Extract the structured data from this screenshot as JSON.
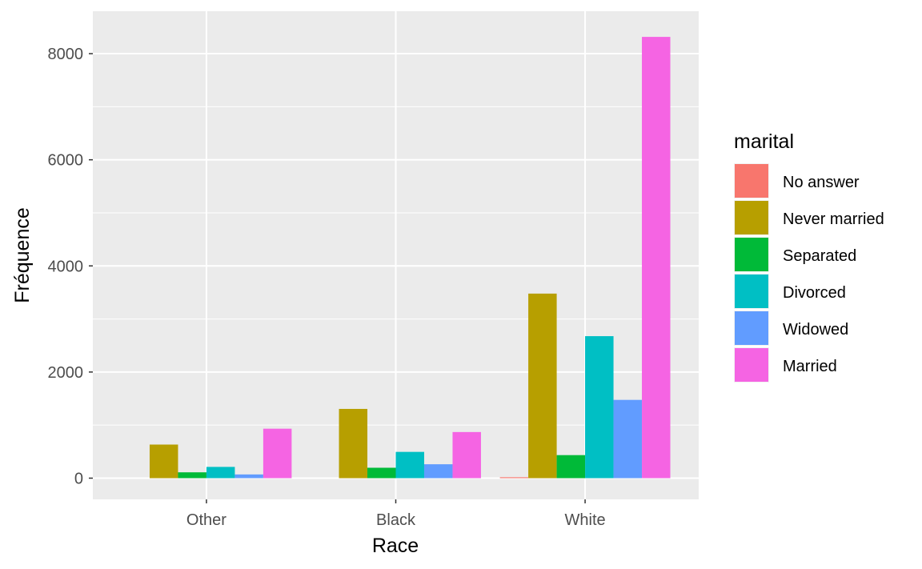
{
  "chart_data": {
    "type": "bar",
    "title": "",
    "xlabel": "Race",
    "ylabel": "Fréquence",
    "categories": [
      "Other",
      "Black",
      "White"
    ],
    "ylim": [
      -400,
      8800
    ],
    "yticks": [
      0,
      2000,
      4000,
      6000,
      8000
    ],
    "ytick_labels": [
      "0",
      "2000",
      "4000",
      "6000",
      "8000"
    ],
    "grid": true,
    "legend": {
      "title": "marital",
      "placement": "right"
    },
    "series": [
      {
        "name": "No answer",
        "color": "#F8766D",
        "values": [
          0,
          0,
          17
        ]
      },
      {
        "name": "Never married",
        "color": "#B79F00",
        "values": [
          633,
          1305,
          3478
        ]
      },
      {
        "name": "Separated",
        "color": "#00BA38",
        "values": [
          110,
          196,
          434
        ]
      },
      {
        "name": "Divorced",
        "color": "#00BFC4",
        "values": [
          212,
          495,
          2676
        ]
      },
      {
        "name": "Widowed",
        "color": "#619CFF",
        "values": [
          70,
          262,
          1475
        ]
      },
      {
        "name": "Married",
        "color": "#F564E3",
        "values": [
          932,
          869,
          8316
        ]
      }
    ]
  },
  "colors": {
    "panel_bg": "#EBEBEB",
    "grid_major": "#FFFFFF",
    "tick_text": "#4D4D4D"
  }
}
